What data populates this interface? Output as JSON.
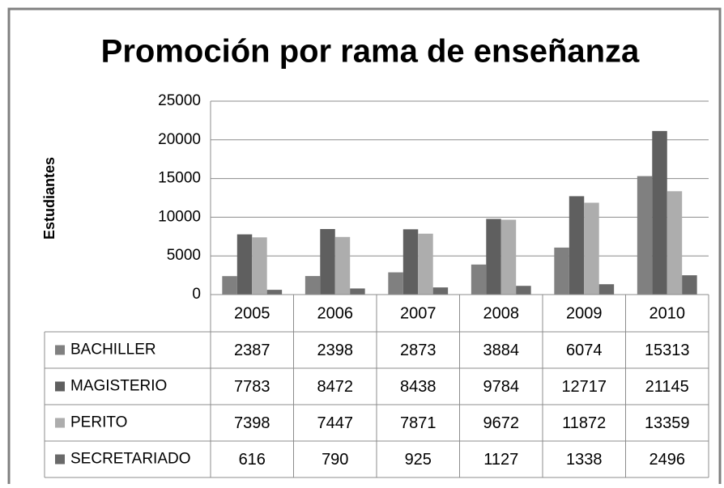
{
  "chart_data": {
    "type": "bar",
    "title": "Promoción por rama de enseñanza",
    "y_label": "Estudiantes",
    "categories": [
      "2005",
      "2006",
      "2007",
      "2008",
      "2009",
      "2010"
    ],
    "series": [
      {
        "name": "BACHILLER",
        "color": "#808080",
        "values": [
          2387,
          2398,
          2873,
          3884,
          6074,
          15313
        ]
      },
      {
        "name": "MAGISTERIO",
        "color": "#5f5f5f",
        "values": [
          7783,
          8472,
          8438,
          9784,
          12717,
          21145
        ]
      },
      {
        "name": "PERITO",
        "color": "#adadad",
        "values": [
          7398,
          7447,
          7871,
          9672,
          11872,
          13359
        ]
      },
      {
        "name": "SECRETARIADO",
        "color": "#696969",
        "values": [
          616,
          790,
          925,
          1127,
          1338,
          2496
        ]
      }
    ],
    "ylim": [
      0,
      25000
    ],
    "yticks": [
      0,
      5000,
      10000,
      15000,
      20000,
      25000
    ],
    "grid": true,
    "data_table": true
  }
}
